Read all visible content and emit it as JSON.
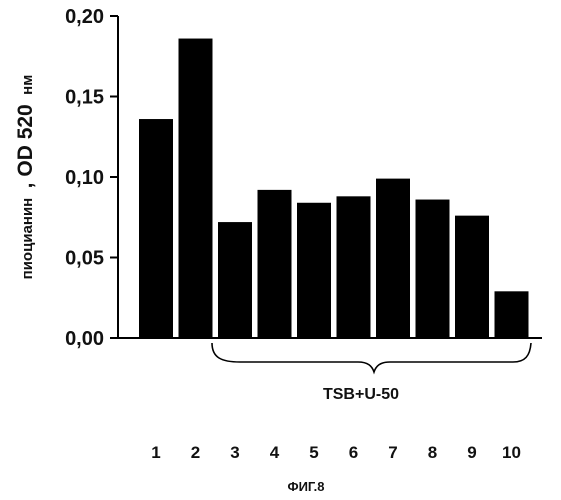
{
  "chart_data": {
    "type": "bar",
    "categories": [
      "1",
      "2",
      "3",
      "4",
      "5",
      "6",
      "7",
      "8",
      "9",
      "10"
    ],
    "values": [
      0.136,
      0.186,
      0.072,
      0.092,
      0.084,
      0.088,
      0.099,
      0.086,
      0.076,
      0.029
    ],
    "ylabel_part1": "пиоцианин",
    "ylabel_part2": ", OD 520",
    "ylabel_part3": "нм",
    "ylim": [
      0,
      0.2
    ],
    "yticks": [
      "0,00",
      "0,05",
      "0,10",
      "0,15",
      "0,20"
    ],
    "group_label": "TSB+U-50",
    "figure_label": "ФИГ.8",
    "bar_color": "#000000",
    "grid": false
  }
}
